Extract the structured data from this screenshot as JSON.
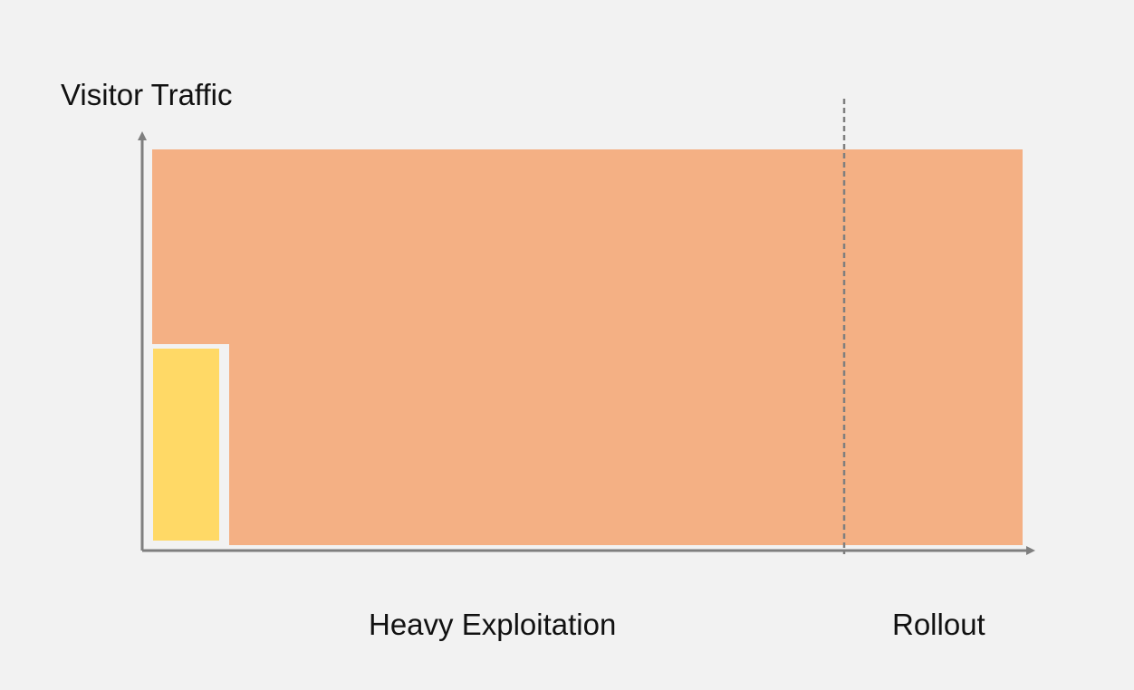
{
  "y_axis_label": "Visitor Traffic",
  "phases": [
    {
      "label": "Heavy Exploitation"
    },
    {
      "label": "Rollout"
    }
  ],
  "colors": {
    "background": "#f2f2f2",
    "traffic_area": "#f4b084",
    "exploration_block": "#ffd966",
    "axis": "#7f7f7f",
    "divider": "#7f7f7f"
  }
}
